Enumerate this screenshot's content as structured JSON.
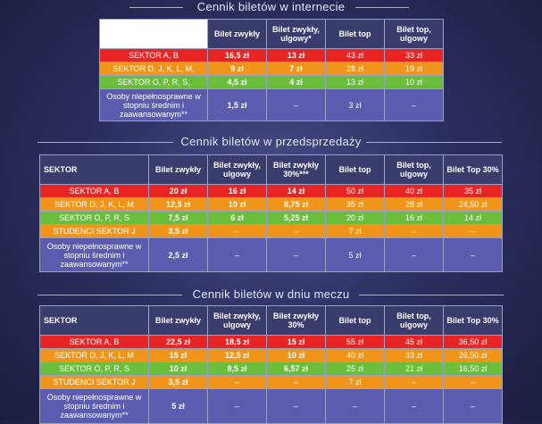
{
  "colors": {
    "red": "#e82424",
    "orange": "#f0951a",
    "green": "#6bbd3c",
    "purple": "#5b5cb0",
    "header": "#3b3c6e"
  },
  "internet": {
    "title": "Cennik biletów w internecie",
    "headers": [
      "Bilet zwykły",
      "Bilet zwykły, ulgowy*",
      "Bilet top",
      "Bilet top, ulgowy"
    ],
    "rows": [
      {
        "label": "SEKTOR  A, B",
        "values": [
          "16,5 zł",
          "13 zł",
          "43 zł",
          "33 zł"
        ]
      },
      {
        "label": "SEKTOR  D, J, K, L, M,",
        "values": [
          "9 zł",
          "7 zł",
          "28 zł",
          "19 zł"
        ]
      },
      {
        "label": "SEKTOR  O, P, R, S,",
        "values": [
          "4,5 zł",
          "4 zł",
          "13 zł",
          "10 zł"
        ]
      },
      {
        "label": "Osoby niepełnosprawne w stopniu średnim i zaawansowanym**",
        "values": [
          "1,5 zł",
          "–",
          "3 zł",
          "–"
        ]
      }
    ]
  },
  "presale": {
    "title": "Cennik biletów w przedsprzedaży",
    "sektor_header": "SEKTOR",
    "headers": [
      "Bilet zwykły",
      "Bilet zwykły, ulgowy",
      "Bilet zwykły 30%***",
      "Bilet top",
      "Bilet top, ulgowy",
      "Bilet Top 30%"
    ],
    "rows": [
      {
        "label": "SEKTOR  A, B",
        "values": [
          "20 zł",
          "16 zł",
          "14 zł",
          "50 zł",
          "40 zł",
          "35 zł"
        ]
      },
      {
        "label": "SEKTOR  D, J, K, L, M",
        "values": [
          "12,5 zł",
          "10 zł",
          "8,75 zł",
          "35 zł",
          "28 zł",
          "24,50 zł"
        ]
      },
      {
        "label": "SEKTOR  O, P, R, S",
        "values": [
          "7,5 zł",
          "6 zł",
          "5,25 zł",
          "20 zł",
          "16 zł",
          "14 zł"
        ]
      },
      {
        "label": "STUDENCI SEKTOR  J",
        "values": [
          "3,5 zł",
          "–",
          "–",
          "7 zł",
          "–",
          "–"
        ]
      },
      {
        "label": "Osoby niepełnosprawne w stopniu średnim i zaawansowanym**",
        "values": [
          "2,5 zł",
          "–",
          "–",
          "5 zł",
          "–",
          "–"
        ]
      }
    ]
  },
  "matchday": {
    "title": "Cennik biletów w dniu meczu",
    "sektor_header": "SEKTOR",
    "headers": [
      "Bilet zwykły",
      "Bilet zwykły, ulgowy",
      "Bilet zwykły 30%",
      "Bilet top",
      "Bilet top, ulgowy",
      "Bilet Top 30%"
    ],
    "rows": [
      {
        "label": "SEKTOR  A, B",
        "values": [
          "22,5 zł",
          "18,5 zł",
          "15 zł",
          "55 zł",
          "45 zł",
          "36,50 zł"
        ]
      },
      {
        "label": "SEKTOR  D, J, K, L, M",
        "values": [
          "15 zł",
          "12,5 zł",
          "10 zł",
          "40 zł",
          "33 zł",
          "26,50 zł"
        ]
      },
      {
        "label": "SEKTOR  O, P, R, S",
        "values": [
          "10 zł",
          "8,5 zł",
          "6,57 zł",
          "25 zł",
          "21 zł",
          "16,50 zł"
        ]
      },
      {
        "label": "STUDENCI SEKTOR  J",
        "values": [
          "3,5 zł",
          "–",
          "–",
          "7 zł",
          "–",
          "–"
        ]
      },
      {
        "label": "Osoby niepełnosprawne w stopniu średnim i zaawansowanym**",
        "values": [
          "5 zł",
          "–",
          "–",
          "–",
          "–",
          "–"
        ]
      }
    ]
  }
}
